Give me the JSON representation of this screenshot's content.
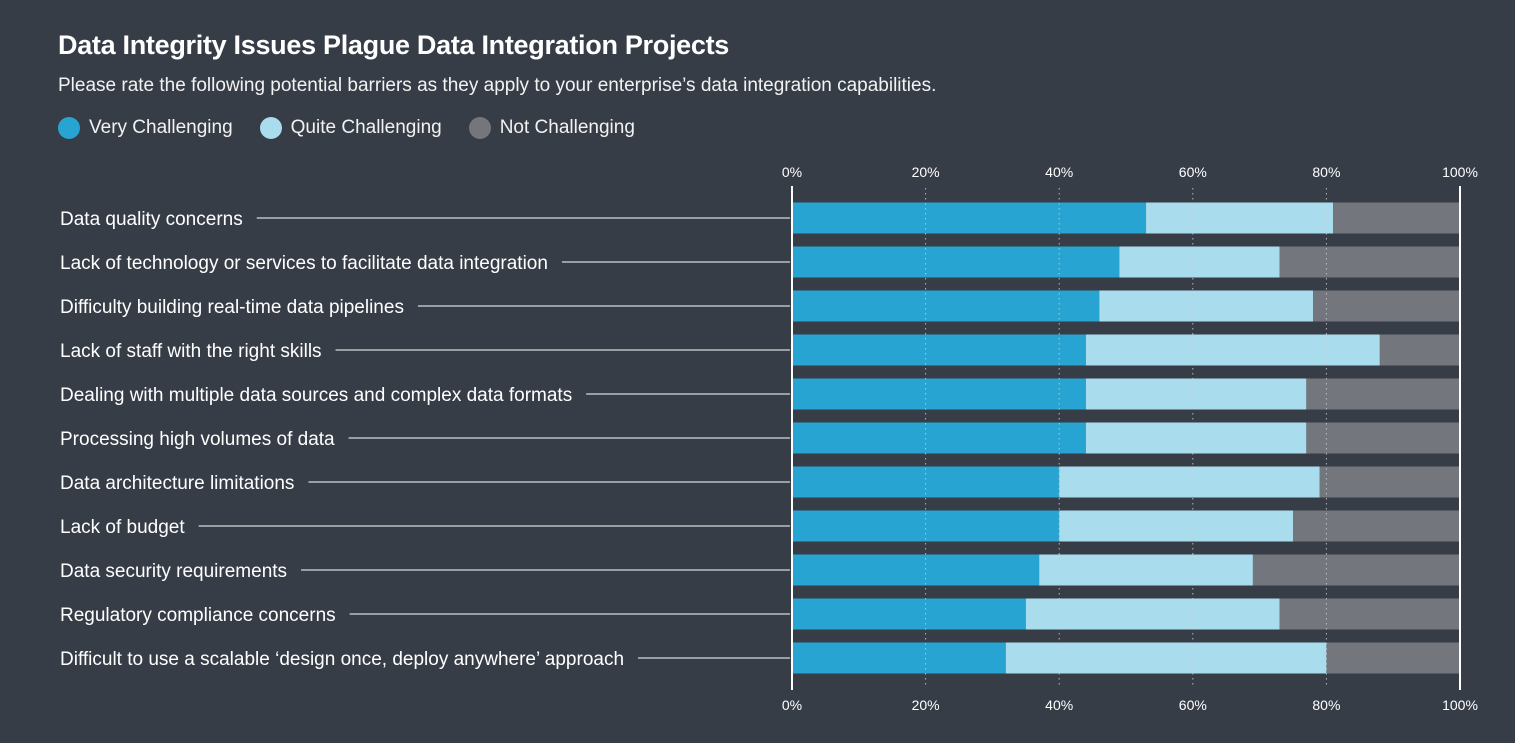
{
  "header": {
    "title": "Data Integrity Issues Plague Data Integration Projects",
    "subtitle": "Please rate the following potential barriers as they apply to your enterprise’s data integration capabilities."
  },
  "legend": [
    {
      "label": "Very Challenging",
      "color": "#27a4d1"
    },
    {
      "label": "Quite Challenging",
      "color": "#a9dcec"
    },
    {
      "label": "Not Challenging",
      "color": "#73767c"
    }
  ],
  "chart_data": {
    "type": "bar",
    "orientation": "horizontal",
    "stacked": true,
    "title": "Data Integrity Issues Plague Data Integration Projects",
    "subtitle": "Please rate the following potential barriers as they apply to your enterprise’s data integration capabilities.",
    "xlim": [
      0,
      100
    ],
    "x_ticks": [
      "0%",
      "20%",
      "40%",
      "60%",
      "80%",
      "100%"
    ],
    "x_tick_values": [
      0,
      20,
      40,
      60,
      80,
      100
    ],
    "grid": "dotted vertical",
    "legend_position": "top-left",
    "categories": [
      "Data quality concerns",
      "Lack of technology or services to facilitate data integration",
      "Difficulty building real-time data pipelines",
      "Lack of staff with the right skills",
      "Dealing with multiple data sources and complex data formats",
      "Processing high volumes of data",
      "Data architecture limitations",
      "Lack of budget",
      "Data security requirements",
      "Regulatory compliance concerns",
      "Difficult to use a scalable ‘design once, deploy anywhere’ approach"
    ],
    "series": [
      {
        "name": "Very Challenging",
        "color": "#27a4d1",
        "values": [
          53,
          49,
          46,
          44,
          44,
          44,
          40,
          40,
          37,
          35,
          32
        ]
      },
      {
        "name": "Quite Challenging",
        "color": "#a9dcec",
        "values": [
          28,
          24,
          32,
          44,
          33,
          33,
          39,
          35,
          32,
          38,
          48
        ]
      },
      {
        "name": "Not Challenging",
        "color": "#73767c",
        "values": [
          19,
          27,
          22,
          12,
          23,
          23,
          21,
          25,
          31,
          27,
          20
        ]
      }
    ]
  }
}
